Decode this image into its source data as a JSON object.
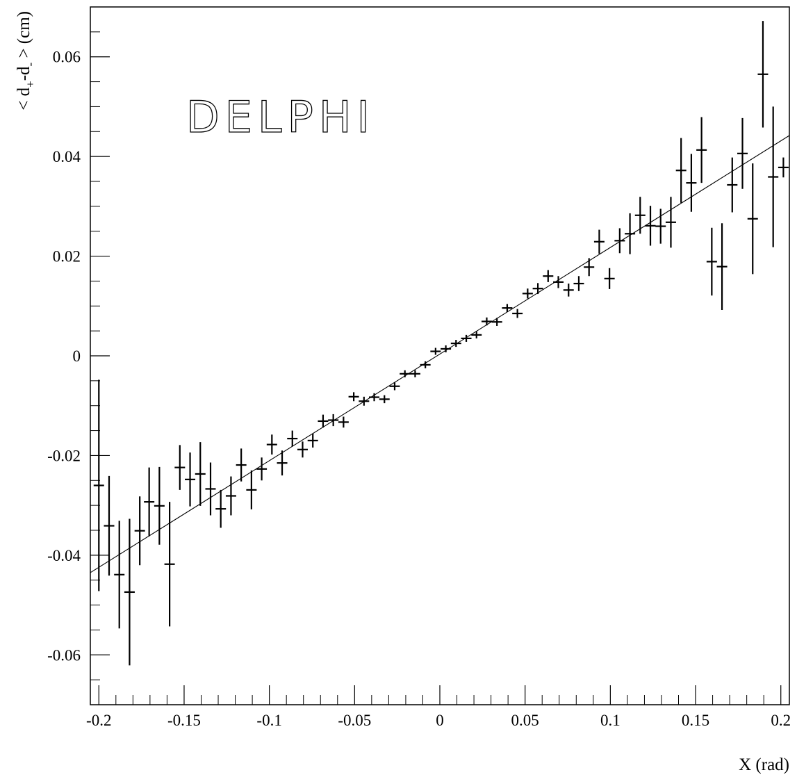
{
  "chart_data": {
    "type": "scatter",
    "annotation": "DELPHI",
    "xlabel": "X (rad)",
    "ylabel": {
      "prefix": "< d",
      "sub1": "+",
      "mid": "-d",
      "sub2": "-",
      "suffix": " > (cm)"
    },
    "xlim": [
      -0.205,
      0.205
    ],
    "ylim": [
      -0.07,
      0.07
    ],
    "x_ticks": [
      -0.2,
      -0.15,
      -0.1,
      -0.05,
      0,
      0.05,
      0.1,
      0.15,
      0.2
    ],
    "x_tick_labels": [
      "-0.2",
      "-0.15",
      "-0.1",
      "-0.05",
      "0",
      "0.05",
      "0.1",
      "0.15",
      "0.2"
    ],
    "y_ticks": [
      -0.06,
      -0.04,
      -0.02,
      0,
      0.02,
      0.04,
      0.06
    ],
    "y_tick_labels": [
      "-0.06",
      "-0.04",
      "-0.02",
      "0",
      "0.02",
      "0.04",
      "0.06"
    ],
    "fit_line": {
      "x": [
        -0.205,
        0.205
      ],
      "y": [
        -0.0435,
        0.0442
      ]
    },
    "series": [
      {
        "points": [
          {
            "x": -0.2,
            "y": -0.026,
            "err": 0.0212
          },
          {
            "x": -0.194,
            "y": -0.0341,
            "err": 0.01
          },
          {
            "x": -0.188,
            "y": -0.0439,
            "err": 0.0108
          },
          {
            "x": -0.182,
            "y": -0.0474,
            "err": 0.0147
          },
          {
            "x": -0.176,
            "y": -0.0351,
            "err": 0.0069
          },
          {
            "x": -0.1705,
            "y": -0.0293,
            "err": 0.0069
          },
          {
            "x": -0.1645,
            "y": -0.0301,
            "err": 0.0078
          },
          {
            "x": -0.1585,
            "y": -0.0418,
            "err": 0.0125
          },
          {
            "x": -0.1525,
            "y": -0.0224,
            "err": 0.0045
          },
          {
            "x": -0.1465,
            "y": -0.0248,
            "err": 0.0054
          },
          {
            "x": -0.1405,
            "y": -0.0237,
            "err": 0.0064
          },
          {
            "x": -0.1345,
            "y": -0.0267,
            "err": 0.0053
          },
          {
            "x": -0.1285,
            "y": -0.0307,
            "err": 0.0038
          },
          {
            "x": -0.1225,
            "y": -0.0281,
            "err": 0.0039
          },
          {
            "x": -0.1165,
            "y": -0.0219,
            "err": 0.0033
          },
          {
            "x": -0.1105,
            "y": -0.0269,
            "err": 0.0039
          },
          {
            "x": -0.1045,
            "y": -0.0227,
            "err": 0.0023
          },
          {
            "x": -0.0985,
            "y": -0.0178,
            "err": 0.002
          },
          {
            "x": -0.0925,
            "y": -0.0215,
            "err": 0.0025
          },
          {
            "x": -0.0865,
            "y": -0.0166,
            "err": 0.0016
          },
          {
            "x": -0.0805,
            "y": -0.0188,
            "err": 0.0016
          },
          {
            "x": -0.0745,
            "y": -0.017,
            "err": 0.0014
          },
          {
            "x": -0.0685,
            "y": -0.0131,
            "err": 0.0013
          },
          {
            "x": -0.0625,
            "y": -0.0129,
            "err": 0.0012
          },
          {
            "x": -0.0565,
            "y": -0.0133,
            "err": 0.0011
          },
          {
            "x": -0.0505,
            "y": -0.0082,
            "err": 0.0009
          },
          {
            "x": -0.0445,
            "y": -0.0091,
            "err": 0.0009
          },
          {
            "x": -0.0385,
            "y": -0.0083,
            "err": 0.0008
          },
          {
            "x": -0.0325,
            "y": -0.0087,
            "err": 0.0008
          },
          {
            "x": -0.0265,
            "y": -0.0061,
            "err": 0.0008
          },
          {
            "x": -0.0205,
            "y": -0.0036,
            "err": 0.0007
          },
          {
            "x": -0.0145,
            "y": -0.0036,
            "err": 0.0007
          },
          {
            "x": -0.0085,
            "y": -0.0018,
            "err": 0.0007
          },
          {
            "x": -0.0025,
            "y": 0.0009,
            "err": 0.0007
          },
          {
            "x": 0.0035,
            "y": 0.0014,
            "err": 0.0007
          },
          {
            "x": 0.0095,
            "y": 0.0025,
            "err": 0.0007
          },
          {
            "x": 0.0155,
            "y": 0.0035,
            "err": 0.0007
          },
          {
            "x": 0.0215,
            "y": 0.0042,
            "err": 0.0007
          },
          {
            "x": 0.0275,
            "y": 0.0069,
            "err": 0.0008
          },
          {
            "x": 0.0335,
            "y": 0.0068,
            "err": 0.0008
          },
          {
            "x": 0.0395,
            "y": 0.0096,
            "err": 0.0008
          },
          {
            "x": 0.0455,
            "y": 0.0085,
            "err": 0.0009
          },
          {
            "x": 0.0515,
            "y": 0.0125,
            "err": 0.001
          },
          {
            "x": 0.0575,
            "y": 0.0135,
            "err": 0.0011
          },
          {
            "x": 0.0635,
            "y": 0.016,
            "err": 0.0012
          },
          {
            "x": 0.0695,
            "y": 0.0148,
            "err": 0.0012
          },
          {
            "x": 0.0755,
            "y": 0.0132,
            "err": 0.0013
          },
          {
            "x": 0.0815,
            "y": 0.0145,
            "err": 0.0015
          },
          {
            "x": 0.0875,
            "y": 0.0178,
            "err": 0.0018
          },
          {
            "x": 0.0935,
            "y": 0.0229,
            "err": 0.0024
          },
          {
            "x": 0.0995,
            "y": 0.0155,
            "err": 0.0021
          },
          {
            "x": 0.1055,
            "y": 0.0231,
            "err": 0.0025
          },
          {
            "x": 0.1115,
            "y": 0.0245,
            "err": 0.0041
          },
          {
            "x": 0.1175,
            "y": 0.0282,
            "err": 0.0037
          },
          {
            "x": 0.1235,
            "y": 0.0261,
            "err": 0.004
          },
          {
            "x": 0.1295,
            "y": 0.026,
            "err": 0.0035
          },
          {
            "x": 0.1355,
            "y": 0.0268,
            "err": 0.0051
          },
          {
            "x": 0.1415,
            "y": 0.0372,
            "err": 0.0065
          },
          {
            "x": 0.1475,
            "y": 0.0347,
            "err": 0.0058
          },
          {
            "x": 0.1535,
            "y": 0.0413,
            "err": 0.0066
          },
          {
            "x": 0.1595,
            "y": 0.0189,
            "err": 0.0068
          },
          {
            "x": 0.1655,
            "y": 0.0179,
            "err": 0.0087
          },
          {
            "x": 0.1715,
            "y": 0.0343,
            "err": 0.0055
          },
          {
            "x": 0.1775,
            "y": 0.0406,
            "err": 0.0071
          },
          {
            "x": 0.1835,
            "y": 0.0275,
            "err": 0.0111
          },
          {
            "x": 0.1895,
            "y": 0.0565,
            "err": 0.0107
          },
          {
            "x": 0.1955,
            "y": 0.0359,
            "err": 0.0141
          },
          {
            "x": 0.2015,
            "y": 0.0378,
            "err": 0.002
          }
        ]
      }
    ],
    "grid": false,
    "colors": {
      "marks": "#000000",
      "background": "#ffffff"
    }
  }
}
